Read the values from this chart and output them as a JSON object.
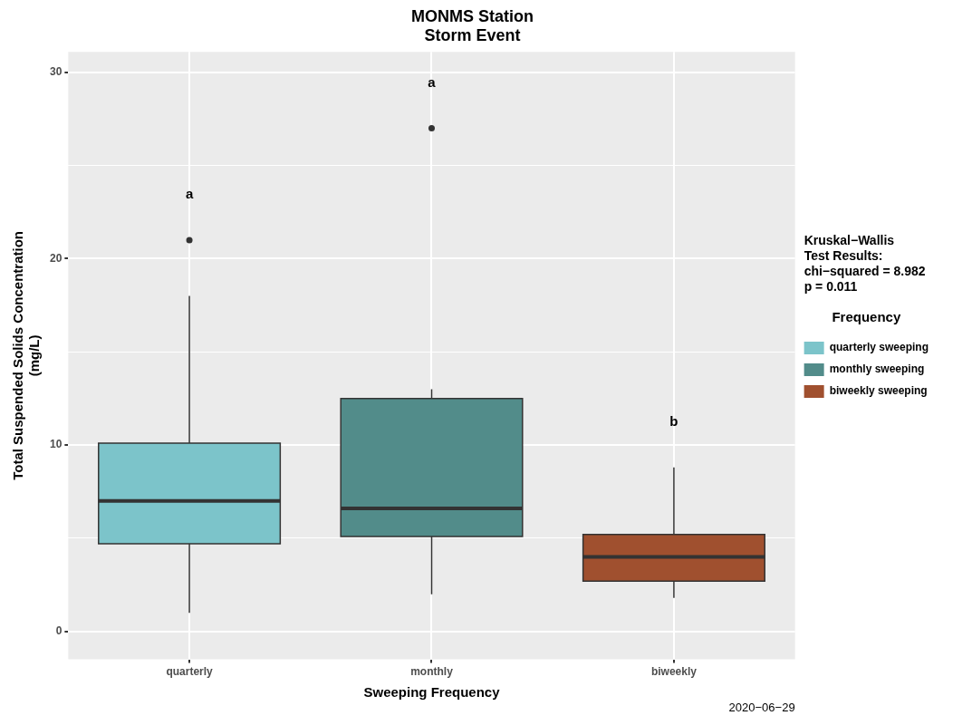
{
  "chart_data": {
    "type": "box",
    "title": "MONMS Station\nStorm Event",
    "xlabel": "Sweeping Frequency",
    "ylabel": "Total Suspended Solids Concentration\n(mg/L)",
    "legend_title": "Frequency",
    "categories": [
      "quarterly",
      "monthly",
      "biweekly"
    ],
    "series": [
      {
        "name": "quarterly sweeping",
        "color": "#7cc4ca",
        "boxes": [
          {
            "low": 1.0,
            "q1": 4.7,
            "median": 7.0,
            "q3": 10.1,
            "high": 18.0,
            "outliers": [
              21.0
            ]
          },
          null,
          null
        ]
      },
      {
        "name": "monthly sweeping",
        "color": "#528c8a",
        "boxes": [
          null,
          {
            "low": 2.0,
            "q1": 5.1,
            "median": 6.6,
            "q3": 12.5,
            "high": 13.0,
            "outliers": [
              27.0
            ]
          },
          null
        ]
      },
      {
        "name": "biweekly sweeping",
        "color": "#a0502f",
        "boxes": [
          null,
          null,
          {
            "low": 1.8,
            "q1": 2.7,
            "median": 4.0,
            "q3": 5.2,
            "high": 8.8
          }
        ]
      }
    ],
    "ylim": [
      -1.5,
      31.1
    ],
    "yticks": [
      0,
      {
        "value": 5,
        "label": null
      },
      10,
      {
        "value": 15,
        "label": null
      },
      20,
      {
        "value": 25,
        "label": null
      },
      30
    ],
    "grid": true,
    "legend": "right",
    "annotations": [
      "Kruskal−Wallis\nTest Results:\nchi−squared = 8.982\np = 0.011",
      "a",
      "a",
      "b",
      "2020−06−29"
    ]
  }
}
